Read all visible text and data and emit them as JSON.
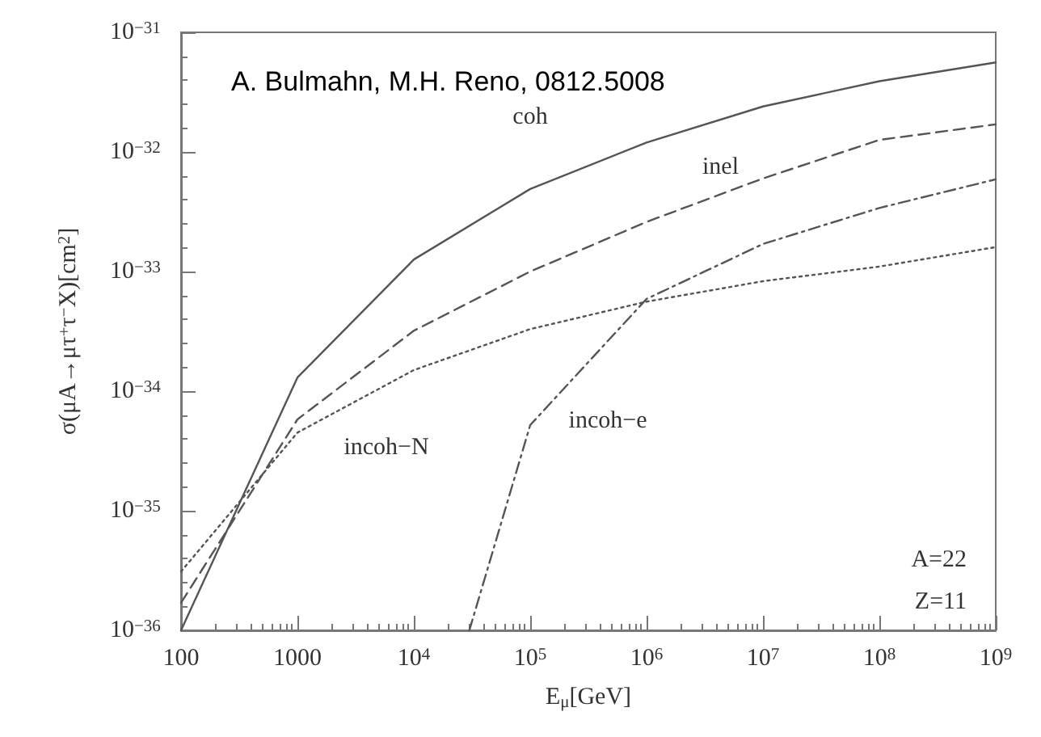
{
  "chart_data": {
    "type": "line",
    "xlabel": "E$_{μ}$[GeV]",
    "ylabel": "σ(μA→μτ$^{+}$τ$^{−}$X)[cm$^{2}$]",
    "x": [
      100,
      1000,
      10000,
      100000,
      1000000,
      10000000,
      100000000,
      1000000000
    ],
    "series": [
      {
        "name": "coh",
        "color": "#555555",
        "line_style": "solid",
        "values": [
          1e-36,
          1.3e-34,
          1.26e-33,
          4.9e-33,
          1.2e-32,
          2.4e-32,
          3.9e-32,
          5.6e-32
        ]
      },
      {
        "name": "inel",
        "color": "#555555",
        "line_style": "dashed",
        "values": [
          1.7e-36,
          5.8e-35,
          3.2e-34,
          1e-33,
          2.6e-33,
          6e-33,
          1.26e-32,
          1.7e-32
        ]
      },
      {
        "name": "incoh−N",
        "color": "#555555",
        "line_style": "dotted",
        "values": [
          3.1e-36,
          4.5e-35,
          1.5e-34,
          3.3e-34,
          5.6e-34,
          8.3e-34,
          1.1e-33,
          1.6e-33
        ]
      },
      {
        "name": "incoh−e",
        "color": "#555555",
        "line_style": "dashdot",
        "x": [
          30000,
          100000,
          1000000,
          10000000,
          100000000,
          1000000000
        ],
        "values": [
          1e-36,
          5.2e-35,
          5.9e-34,
          1.7e-33,
          3.4e-33,
          5.9e-33
        ]
      }
    ],
    "log": "xy",
    "xlim": [
      100,
      1000000000
    ],
    "ylim": [
      1e-36,
      1e-31
    ],
    "xticks": [
      100,
      1000,
      {
        "value": 10000,
        "label": "10$^{4}$"
      },
      {
        "value": 100000,
        "label": "10$^{5}$"
      },
      {
        "value": 1000000,
        "label": "10$^{6}$"
      },
      {
        "value": 10000000,
        "label": "10$^{7}$"
      },
      {
        "value": 100000000,
        "label": "10$^{8}$"
      },
      {
        "value": 1000000000,
        "label": "10$^{9}$"
      }
    ],
    "yticks": [
      {
        "value": 1e-36,
        "label": "10$^{−36}$"
      },
      {
        "value": 1e-35,
        "label": "10$^{−35}$"
      },
      {
        "value": 1e-34,
        "label": "10$^{−34}$"
      },
      {
        "value": 1e-33,
        "label": "10$^{−33}$"
      },
      {
        "value": 1e-32,
        "label": "10$^{−32}$"
      },
      {
        "value": 1e-31,
        "label": "10$^{−31}$"
      }
    ],
    "grid": false,
    "legend": false,
    "marker": "none",
    "annotations": [
      "A. Bulmahn, M.H. Reno, 0812.5008",
      "A=22",
      "Z=11"
    ]
  }
}
